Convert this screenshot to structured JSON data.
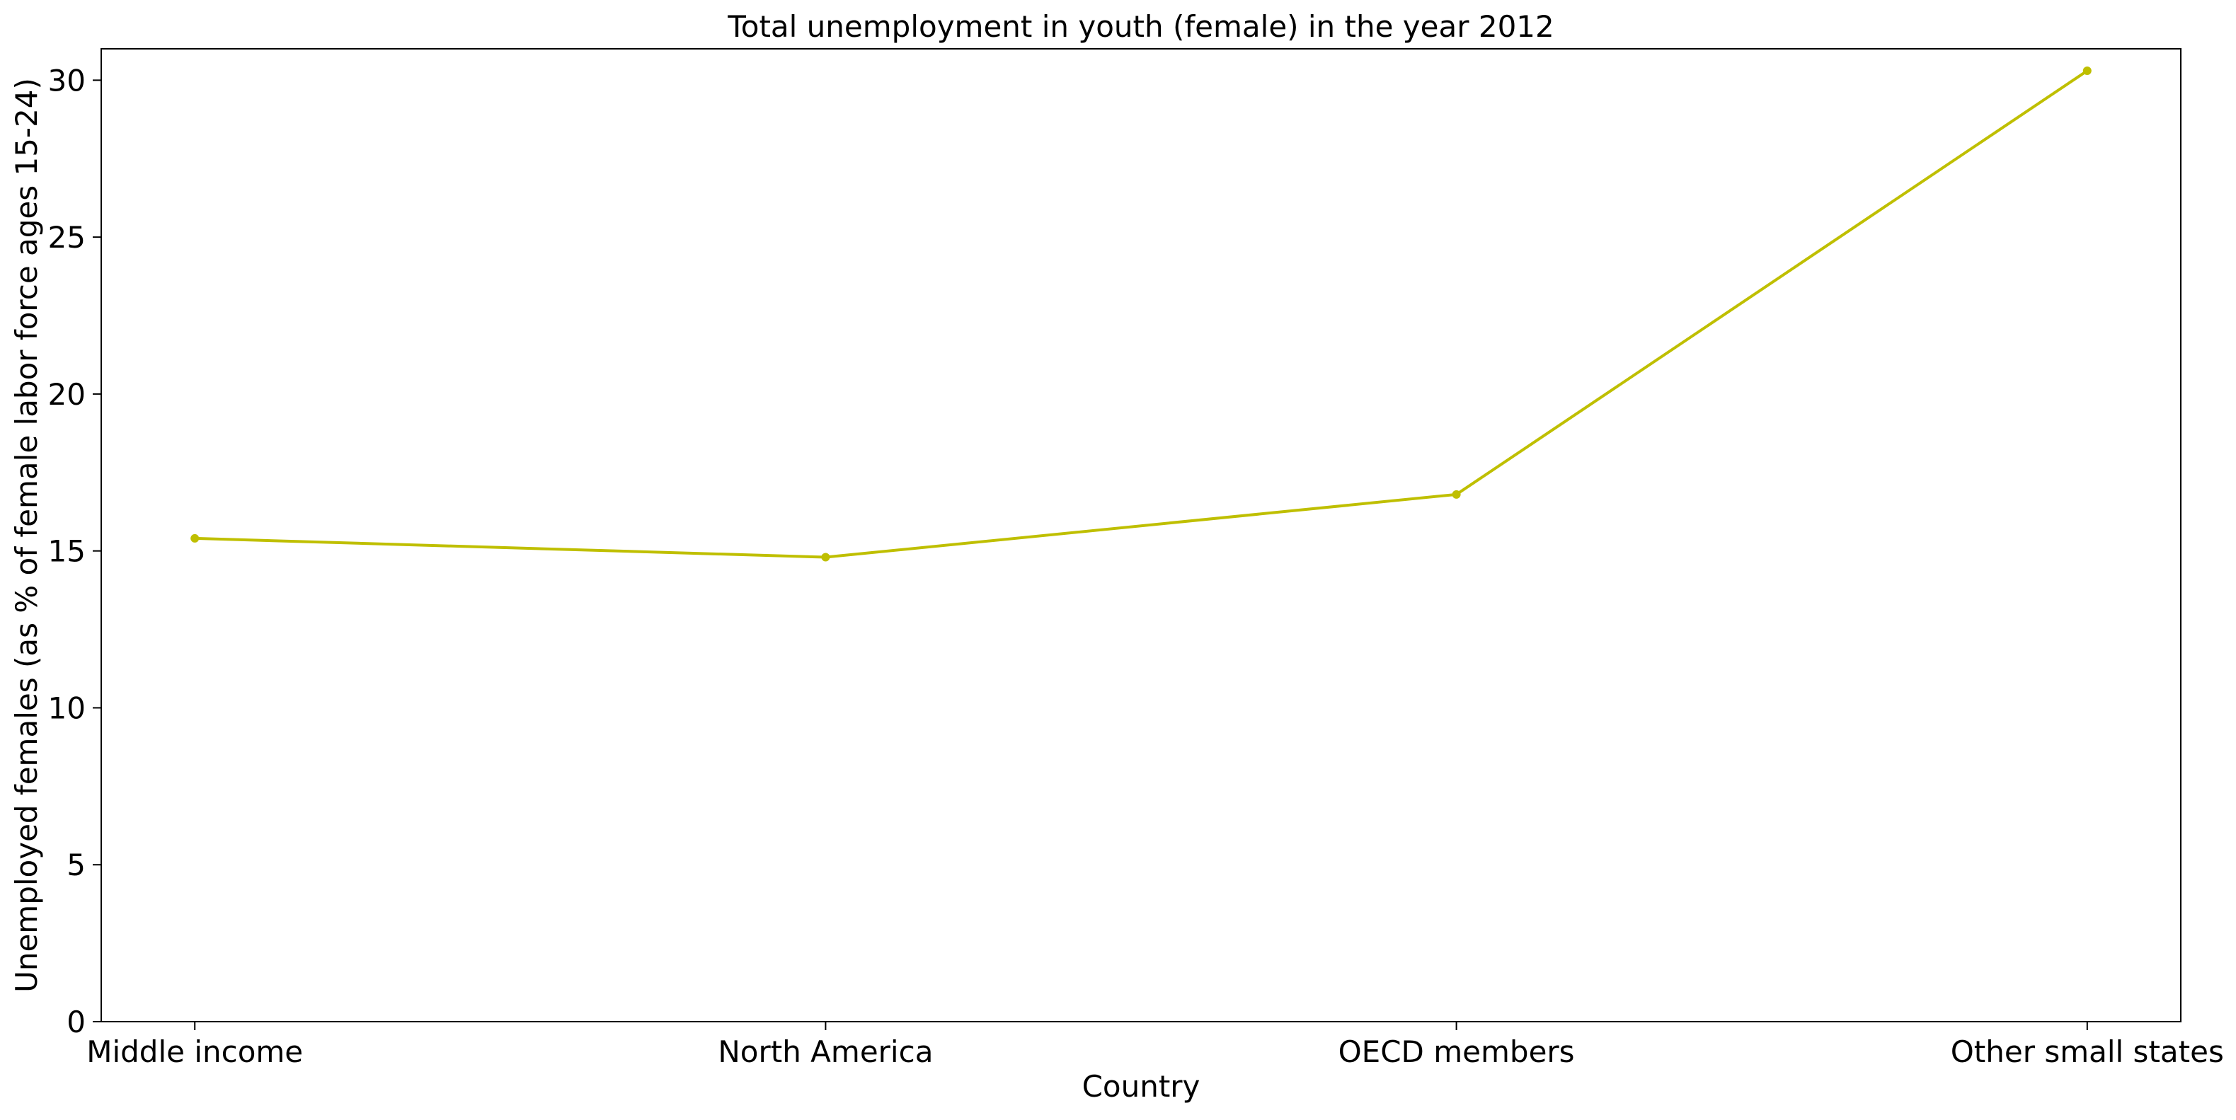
{
  "chart_data": {
    "type": "line",
    "title": "Total unemployment in youth (female) in the year 2012",
    "xlabel": "Country",
    "ylabel": "Unemployed females (as % of female labor force ages 15-24)",
    "categories": [
      "Middle income",
      "North America",
      "OECD members",
      "Other small states"
    ],
    "series": [
      {
        "values": [
          15.4,
          14.8,
          16.8,
          30.3
        ],
        "color": "#bfbf00",
        "marker": "circle"
      }
    ],
    "ylim": [
      0,
      31
    ],
    "yticks": [
      0,
      5,
      10,
      15,
      20,
      25,
      30
    ],
    "grid": false,
    "legend": "none"
  }
}
